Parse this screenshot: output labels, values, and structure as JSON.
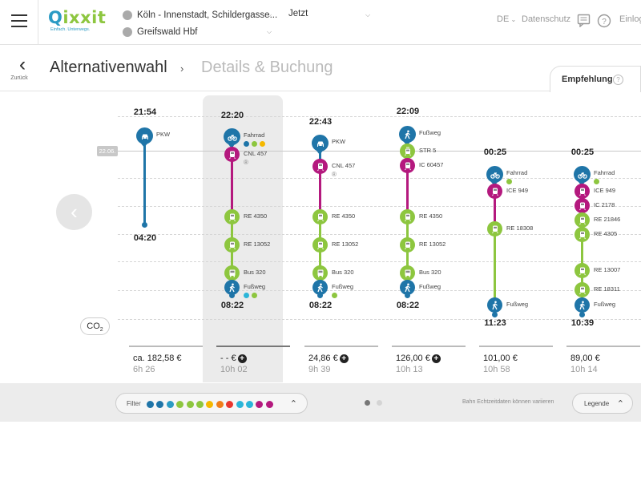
{
  "colors": {
    "car": "#1f75a8",
    "bike": "#1f75a8",
    "walk": "#1f75a8",
    "longdistance": "#b4197e",
    "regional": "#8dc63f",
    "tram": "#8dc63f",
    "ice": "#b4197e",
    "accent_blue": "#2b9bc4",
    "accent_green": "#8dc63f"
  },
  "header": {
    "logo_text_q": "Q",
    "logo_text_rest": "ixxit",
    "logo_tagline": "Einfach. Unterwegs.",
    "from": "Köln - Innenstadt, Schildergasse...",
    "to": "Greifswald Hbf",
    "time_label": "Jetzt",
    "language": "DE",
    "privacy": "Datenschutz",
    "login": "Einlog"
  },
  "breadcrumb": {
    "back_label": "Zurück",
    "step_current": "Alternativenwahl",
    "separator": "›",
    "step_next": "Details & Buchung",
    "tab_label": "Empfehlung",
    "tab_help": "?"
  },
  "date_badge": "22.06.",
  "co2_label": "CO",
  "co2_sub": "2",
  "prev_arrow": "‹",
  "journeys": [
    {
      "departure": "21:54",
      "arrival": "04:20",
      "price": "ca. 182,58 €",
      "price_plus": false,
      "duration": "6h 26",
      "selected": false,
      "legs": [
        {
          "mode": "car",
          "icon": "car-icon",
          "label": "PKW",
          "color": "#1f75a8"
        }
      ]
    },
    {
      "departure": "22:20",
      "arrival": "08:22",
      "price": "- - €",
      "price_plus": true,
      "duration": "10h 02",
      "selected": true,
      "legs": [
        {
          "mode": "bike",
          "icon": "bike-icon",
          "label": "Fahrrad",
          "color": "#1f75a8",
          "dots": [
            "#1f75a8",
            "#8dc63f",
            "#f5b800"
          ]
        },
        {
          "mode": "train",
          "icon": "train-icon",
          "label": "CNL 457",
          "color": "#b4197e",
          "note": "®"
        },
        {
          "mode": "train",
          "icon": "train-icon",
          "label": "RE 4350",
          "color": "#8dc63f"
        },
        {
          "mode": "train",
          "icon": "train-icon",
          "label": "RE 13052",
          "color": "#8dc63f"
        },
        {
          "mode": "bus",
          "icon": "bus-icon",
          "label": "Bus 320",
          "color": "#8dc63f"
        },
        {
          "mode": "walk",
          "icon": "walk-icon",
          "label": "Fußweg",
          "color": "#1f75a8",
          "dots": [
            "#2bb5d8",
            "#8dc63f"
          ]
        }
      ]
    },
    {
      "departure": "22:43",
      "arrival": "08:22",
      "price": "24,86 €",
      "price_plus": true,
      "duration": "9h 39",
      "selected": false,
      "legs": [
        {
          "mode": "car",
          "icon": "car-icon",
          "label": "PKW",
          "color": "#1f75a8"
        },
        {
          "mode": "train",
          "icon": "train-icon",
          "label": "CNL 457",
          "color": "#b4197e",
          "note": "®"
        },
        {
          "mode": "train",
          "icon": "train-icon",
          "label": "RE 4350",
          "color": "#8dc63f"
        },
        {
          "mode": "train",
          "icon": "train-icon",
          "label": "RE 13052",
          "color": "#8dc63f"
        },
        {
          "mode": "bus",
          "icon": "bus-icon",
          "label": "Bus 320",
          "color": "#8dc63f"
        },
        {
          "mode": "walk",
          "icon": "walk-icon",
          "label": "Fußweg",
          "color": "#1f75a8",
          "dots": [
            "#8dc63f"
          ]
        }
      ]
    },
    {
      "departure": "22:09",
      "arrival": "08:22",
      "price": "126,00 €",
      "price_plus": true,
      "duration": "10h 13",
      "selected": false,
      "legs": [
        {
          "mode": "walk",
          "icon": "walk-icon",
          "label": "Fußweg",
          "color": "#1f75a8"
        },
        {
          "mode": "tram",
          "icon": "tram-icon",
          "label": "STR 5",
          "color": "#8dc63f"
        },
        {
          "mode": "train",
          "icon": "train-icon",
          "label": "IC 60457",
          "color": "#b4197e"
        },
        {
          "mode": "train",
          "icon": "train-icon",
          "label": "RE 4350",
          "color": "#8dc63f"
        },
        {
          "mode": "train",
          "icon": "train-icon",
          "label": "RE 13052",
          "color": "#8dc63f"
        },
        {
          "mode": "bus",
          "icon": "bus-icon",
          "label": "Bus 320",
          "color": "#8dc63f"
        },
        {
          "mode": "walk",
          "icon": "walk-icon",
          "label": "Fußweg",
          "color": "#1f75a8"
        }
      ]
    },
    {
      "departure": "00:25",
      "arrival": "11:23",
      "price": "101,00 €",
      "price_plus": false,
      "duration": "10h 58",
      "selected": false,
      "legs": [
        {
          "mode": "bike",
          "icon": "bike-icon",
          "label": "Fahrrad",
          "color": "#1f75a8",
          "dots": [
            "#8dc63f"
          ]
        },
        {
          "mode": "train",
          "icon": "train-icon",
          "label": "ICE 949",
          "color": "#b4197e"
        },
        {
          "mode": "train",
          "icon": "train-icon",
          "label": "RE 18308",
          "color": "#8dc63f"
        },
        {
          "mode": "walk",
          "icon": "walk-icon",
          "label": "Fußweg",
          "color": "#1f75a8"
        }
      ]
    },
    {
      "departure": "00:25",
      "arrival": "10:39",
      "price": "89,00 €",
      "price_plus": false,
      "duration": "10h 14",
      "selected": false,
      "legs": [
        {
          "mode": "bike",
          "icon": "bike-icon",
          "label": "Fahrrad",
          "color": "#1f75a8",
          "dots": [
            "#8dc63f"
          ]
        },
        {
          "mode": "train",
          "icon": "train-icon",
          "label": "ICE 949",
          "color": "#b4197e"
        },
        {
          "mode": "train",
          "icon": "train-icon",
          "label": "IC 2178",
          "color": "#b4197e"
        },
        {
          "mode": "train",
          "icon": "train-icon",
          "label": "RE 21846",
          "color": "#8dc63f"
        },
        {
          "mode": "train",
          "icon": "train-icon",
          "label": "RE 4305",
          "color": "#8dc63f"
        },
        {
          "mode": "train",
          "icon": "train-icon",
          "label": "RE 13007",
          "color": "#8dc63f"
        },
        {
          "mode": "train",
          "icon": "train-icon",
          "label": "RE 18311",
          "color": "#8dc63f"
        },
        {
          "mode": "walk",
          "icon": "walk-icon",
          "label": "Fußweg",
          "color": "#1f75a8"
        }
      ]
    }
  ],
  "bottom": {
    "filter_label": "Filter",
    "filter_colors": [
      "#1f75a8",
      "#1f75a8",
      "#2b9bc4",
      "#8dc63f",
      "#8dc63f",
      "#8dc63f",
      "#f5b800",
      "#f07d1a",
      "#e8362f",
      "#2bb5d8",
      "#2bb5d8",
      "#b4197e",
      "#b4197e"
    ],
    "page_current": 1,
    "page_total": 2,
    "note": "Bahn Echtzeitdaten können variieren",
    "legend_label": "Legende",
    "caret": "^"
  }
}
